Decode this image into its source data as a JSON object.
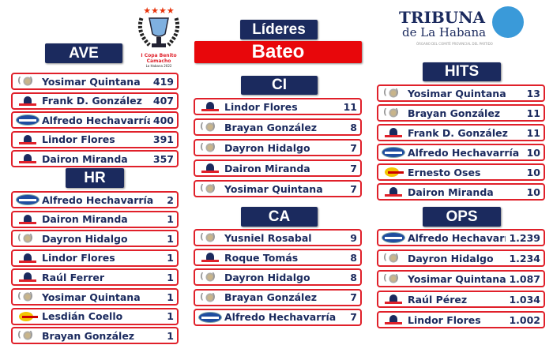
{
  "title": {
    "top": "Líderes",
    "main": "Bateo"
  },
  "cup": {
    "stars": "★★★★",
    "line1": "I Copa Benito Camacho",
    "line2": "La Habana 2022"
  },
  "tribuna": {
    "name": "TRIBUNA",
    "sub": "de La Habana",
    "tag": "ÓRGANO DEL COMITÉ PROVINCIAL DEL PARTIDO"
  },
  "colors": {
    "header": "#1b2a5e",
    "accent": "#e8070b",
    "border": "#e0202a"
  },
  "sections": [
    {
      "id": "ave",
      "label": "AVE",
      "rows": [
        {
          "team": "gray",
          "name": "Yosimar Quintana",
          "value": "419"
        },
        {
          "team": "cz",
          "name": "Frank D. González",
          "value": "407"
        },
        {
          "team": "cap",
          "name": "Alfredo Hechavarría",
          "value": "400"
        },
        {
          "team": "cz",
          "name": "Lindor Flores",
          "value": "391"
        },
        {
          "team": "cz",
          "name": "Dairon Miranda",
          "value": "357"
        }
      ]
    },
    {
      "id": "hr",
      "label": "HR",
      "rows": [
        {
          "team": "cap",
          "name": "Alfredo Hechavarría",
          "value": "2"
        },
        {
          "team": "cz",
          "name": "Dairon Miranda",
          "value": "1"
        },
        {
          "team": "gray",
          "name": "Dayron Hidalgo",
          "value": "1"
        },
        {
          "team": "cz",
          "name": "Lindor Flores",
          "value": "1"
        },
        {
          "team": "cz",
          "name": "Raúl Ferrer",
          "value": "1"
        },
        {
          "team": "gray",
          "name": "Yosimar Quintana",
          "value": "1"
        },
        {
          "team": "yl",
          "name": "Lesdián Coello",
          "value": "1"
        },
        {
          "team": "gray",
          "name": "Brayan González",
          "value": "1"
        }
      ]
    },
    {
      "id": "ci",
      "label": "CI",
      "rows": [
        {
          "team": "cz",
          "name": "Lindor Flores",
          "value": "11"
        },
        {
          "team": "gray",
          "name": "Brayan González",
          "value": "8"
        },
        {
          "team": "gray",
          "name": "Dayron Hidalgo",
          "value": "7"
        },
        {
          "team": "cz",
          "name": "Dairon Miranda",
          "value": "7"
        },
        {
          "team": "gray",
          "name": "Yosimar Quintana",
          "value": "7"
        }
      ]
    },
    {
      "id": "ca",
      "label": "CA",
      "rows": [
        {
          "team": "gray",
          "name": "Yusniel Rosabal",
          "value": "9"
        },
        {
          "team": "cz",
          "name": "Roque Tomás",
          "value": "8"
        },
        {
          "team": "gray",
          "name": "Dayron Hidalgo",
          "value": "8"
        },
        {
          "team": "gray",
          "name": "Brayan González",
          "value": "7"
        },
        {
          "team": "cap",
          "name": "Alfredo Hechavarría",
          "value": "7"
        }
      ]
    },
    {
      "id": "hits",
      "label": "HITS",
      "rows": [
        {
          "team": "gray",
          "name": "Yosimar Quintana",
          "value": "13"
        },
        {
          "team": "gray",
          "name": "Brayan González",
          "value": "11"
        },
        {
          "team": "cz",
          "name": "Frank D. González",
          "value": "11"
        },
        {
          "team": "cap",
          "name": "Alfredo Hechavarría",
          "value": "10"
        },
        {
          "team": "yl",
          "name": "Ernesto Oses",
          "value": "10"
        },
        {
          "team": "cz",
          "name": "Dairon Miranda",
          "value": "10"
        }
      ]
    },
    {
      "id": "ops",
      "label": "OPS",
      "rows": [
        {
          "team": "cap",
          "name": "Alfredo Hechavarría",
          "value": "1.239"
        },
        {
          "team": "gray",
          "name": "Dayron Hidalgo",
          "value": "1.234"
        },
        {
          "team": "gray",
          "name": "Yosimar Quintana",
          "value": "1.087"
        },
        {
          "team": "cz",
          "name": "Raúl Pérez",
          "value": "1.034"
        },
        {
          "team": "cz",
          "name": "Lindor Flores",
          "value": "1.002"
        }
      ]
    }
  ]
}
